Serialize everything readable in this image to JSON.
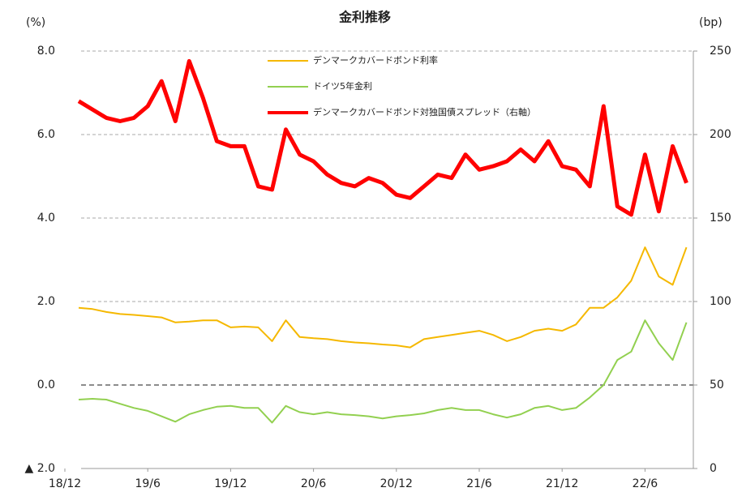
{
  "chart_data": {
    "type": "line",
    "title": "金利推移",
    "y_label": "(%)",
    "y2_label": "(bp)",
    "x": [
      1,
      2,
      3,
      4,
      5,
      6,
      7,
      8,
      9,
      10,
      11,
      12,
      13,
      14,
      15,
      16,
      17,
      18,
      19,
      20,
      21,
      22,
      23,
      24,
      25,
      26,
      27,
      28,
      29,
      30,
      31,
      32,
      33,
      34,
      35,
      36,
      37,
      38,
      39,
      40,
      41,
      42,
      43,
      44,
      45
    ],
    "xlim": [
      0,
      45.5
    ],
    "xticks": [
      {
        "value": 0,
        "label": "18/12"
      },
      {
        "value": 6,
        "label": "19/6"
      },
      {
        "value": 12,
        "label": "19/12"
      },
      {
        "value": 18,
        "label": "20/6"
      },
      {
        "value": 24,
        "label": "20/12"
      },
      {
        "value": 30,
        "label": "21/6"
      },
      {
        "value": 36,
        "label": "21/12"
      },
      {
        "value": 42,
        "label": "22/6"
      }
    ],
    "ylim": [
      -2,
      8
    ],
    "yticks": [
      {
        "value": -2,
        "label": "▲ 2.0"
      },
      {
        "value": 0,
        "label": "0.0"
      },
      {
        "value": 2,
        "label": "2.0"
      },
      {
        "value": 4,
        "label": "4.0"
      },
      {
        "value": 6,
        "label": "6.0"
      },
      {
        "value": 8,
        "label": "8.0"
      }
    ],
    "y2lim": [
      0,
      250
    ],
    "y2ticks": [
      0,
      50,
      100,
      150,
      200,
      250
    ],
    "grid": true,
    "series": [
      {
        "name": "デンマークカバードボンド利率",
        "color": "#f5b800",
        "values": [
          1.85,
          1.82,
          1.75,
          1.7,
          1.68,
          1.65,
          1.62,
          1.5,
          1.52,
          1.55,
          1.55,
          1.38,
          1.4,
          1.38,
          1.05,
          1.55,
          1.15,
          1.12,
          1.1,
          1.05,
          1.02,
          1.0,
          0.97,
          0.95,
          0.9,
          1.1,
          1.15,
          1.2,
          1.25,
          1.3,
          1.2,
          1.05,
          1.15,
          1.3,
          1.35,
          1.3,
          1.45,
          1.85,
          1.85,
          2.1,
          2.5,
          3.3,
          2.6,
          2.4,
          3.3
        ]
      },
      {
        "name": "ドイツ5年金利",
        "color": "#92d050",
        "values": [
          -0.35,
          -0.33,
          -0.35,
          -0.45,
          -0.55,
          -0.62,
          -0.75,
          -0.88,
          -0.7,
          -0.6,
          -0.52,
          -0.5,
          -0.55,
          -0.55,
          -0.9,
          -0.5,
          -0.65,
          -0.7,
          -0.65,
          -0.7,
          -0.72,
          -0.75,
          -0.8,
          -0.75,
          -0.72,
          -0.68,
          -0.6,
          -0.55,
          -0.6,
          -0.6,
          -0.7,
          -0.78,
          -0.7,
          -0.55,
          -0.5,
          -0.6,
          -0.55,
          -0.3,
          0.0,
          0.6,
          0.8,
          1.55,
          1.0,
          0.6,
          1.5
        ]
      },
      {
        "name": "デンマークカバードボンド対独国債スプレッド（右軸）",
        "color": "#ff0000",
        "axis": "y2",
        "values": [
          220,
          215,
          210,
          208,
          210,
          217,
          232,
          208,
          244,
          222,
          196,
          193,
          193,
          169,
          167,
          203,
          188,
          184,
          176,
          171,
          169,
          174,
          171,
          164,
          162,
          169,
          176,
          174,
          188,
          179,
          181,
          184,
          191,
          184,
          196,
          181,
          179,
          169,
          217,
          157,
          152,
          188,
          154,
          193,
          171
        ]
      }
    ]
  }
}
